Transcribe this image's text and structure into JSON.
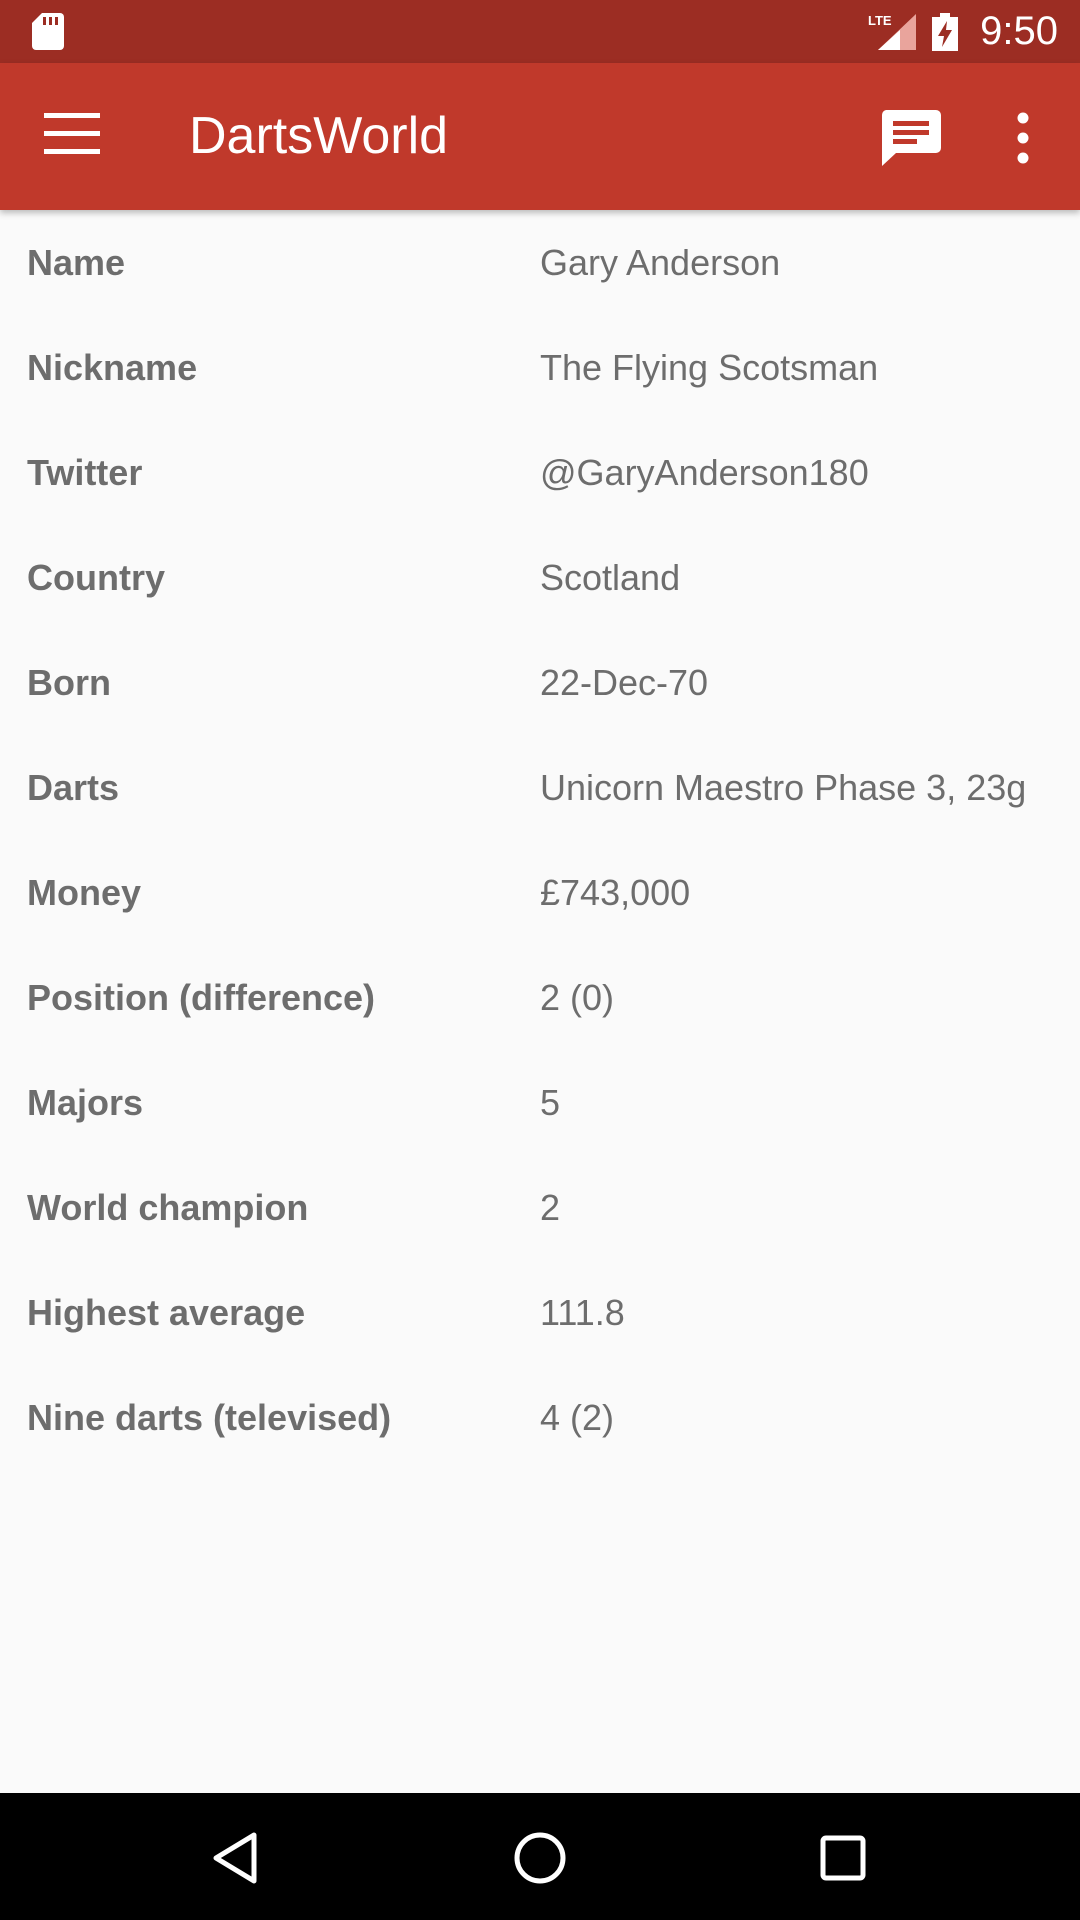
{
  "status_bar": {
    "network": "LTE",
    "time": "9:50",
    "sd_icon": "sd-card-icon",
    "signal_icon": "signal-icon",
    "battery_icon": "battery-charging-icon"
  },
  "app_bar": {
    "title": "DartsWorld",
    "menu_icon": "hamburger-menu-icon",
    "chat_icon": "chat-icon",
    "more_icon": "more-vert-icon",
    "color": "#c0392b"
  },
  "details": [
    {
      "label": "Name",
      "value": "Gary Anderson"
    },
    {
      "label": "Nickname",
      "value": "The Flying Scotsman"
    },
    {
      "label": "Twitter",
      "value": "@GaryAnderson180"
    },
    {
      "label": "Country",
      "value": "Scotland"
    },
    {
      "label": "Born",
      "value": "22-Dec-70"
    },
    {
      "label": "Darts",
      "value": "Unicorn Maestro Phase 3, 23g"
    },
    {
      "label": "Money",
      "value": "£743,000"
    },
    {
      "label": "Position (difference)",
      "value": "2 (0)"
    },
    {
      "label": "Majors",
      "value": "5"
    },
    {
      "label": "World champion",
      "value": "2"
    },
    {
      "label": "Highest average",
      "value": "111.8"
    },
    {
      "label": "Nine darts (televised)",
      "value": "4 (2)"
    }
  ],
  "nav_bar": {
    "back_icon": "back-triangle-icon",
    "home_icon": "home-circle-icon",
    "recents_icon": "recents-square-icon"
  }
}
